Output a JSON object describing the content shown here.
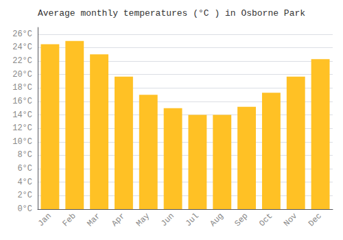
{
  "chart_data": {
    "type": "bar",
    "title": "Average monthly temperatures (°C ) in Osborne Park",
    "categories": [
      "Jan",
      "Feb",
      "Mar",
      "Apr",
      "May",
      "Jun",
      "Jul",
      "Aug",
      "Sep",
      "Oct",
      "Nov",
      "Dec"
    ],
    "values": [
      24.5,
      25.0,
      23.0,
      19.7,
      17.0,
      15.0,
      14.0,
      14.0,
      15.2,
      17.3,
      19.7,
      22.3
    ],
    "color": "#FFC125",
    "ylim": [
      0,
      27
    ],
    "yticks": [
      {
        "value": 0,
        "label": "0°C"
      },
      {
        "value": 2,
        "label": "2°C"
      },
      {
        "value": 4,
        "label": "4°C"
      },
      {
        "value": 6,
        "label": "6°C"
      },
      {
        "value": 8,
        "label": "8°C"
      },
      {
        "value": 10,
        "label": "10°C"
      },
      {
        "value": 12,
        "label": "12°C"
      },
      {
        "value": 14,
        "label": "14°C"
      },
      {
        "value": 16,
        "label": "16°C"
      },
      {
        "value": 18,
        "label": "18°C"
      },
      {
        "value": 20,
        "label": "20°C"
      },
      {
        "value": 22,
        "label": "22°C"
      },
      {
        "value": 24,
        "label": "24°C"
      },
      {
        "value": 26,
        "label": "26°C"
      }
    ],
    "grid": true
  }
}
